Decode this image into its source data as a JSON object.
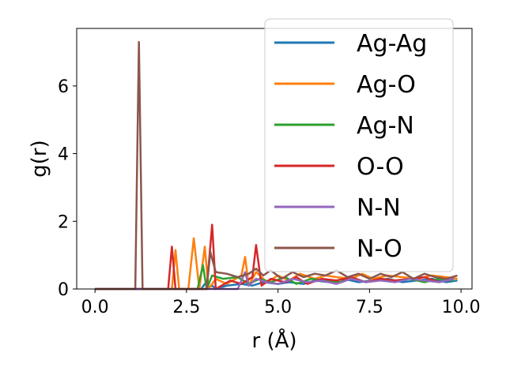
{
  "chart_data": {
    "type": "line",
    "title": "",
    "xlabel": "r (Å)",
    "ylabel": "g(r)",
    "xlim": [
      -0.5,
      10.3
    ],
    "ylim": [
      0,
      7.7
    ],
    "xticks": [
      0.0,
      2.5,
      5.0,
      7.5,
      10.0
    ],
    "xtick_labels": [
      "0.0",
      "2.5",
      "5.0",
      "7.5",
      "10.0"
    ],
    "yticks": [
      0,
      2,
      4,
      6
    ],
    "ytick_labels": [
      "0",
      "2",
      "4",
      "6"
    ],
    "grid": false,
    "legend_position": "top-right",
    "series": [
      {
        "name": "Ag-Ag",
        "color": "#1f77b4",
        "x": [
          0.0,
          2.9,
          3.0,
          3.1,
          3.2,
          3.3,
          3.6,
          4.0,
          4.3,
          4.6,
          5.0,
          5.3,
          5.7,
          6.0,
          6.4,
          6.8,
          7.2,
          7.6,
          8.0,
          8.4,
          8.8,
          9.2,
          9.6,
          9.9
        ],
        "y": [
          0.0,
          0.0,
          0.15,
          0.05,
          0.1,
          0.0,
          0.1,
          0.15,
          0.1,
          0.2,
          0.15,
          0.2,
          0.15,
          0.25,
          0.2,
          0.3,
          0.2,
          0.25,
          0.3,
          0.2,
          0.25,
          0.3,
          0.2,
          0.25
        ]
      },
      {
        "name": "Ag-O",
        "color": "#ff7f0e",
        "x": [
          0.0,
          2.1,
          2.2,
          2.3,
          2.55,
          2.7,
          2.85,
          3.0,
          3.1,
          3.3,
          3.6,
          4.0,
          4.1,
          4.2,
          4.4,
          4.7,
          5.0,
          5.3,
          5.6,
          6.0,
          6.3,
          6.6,
          7.0,
          7.3,
          7.6,
          8.0,
          8.4,
          8.8,
          9.2,
          9.6,
          9.9
        ],
        "y": [
          0.0,
          0.0,
          1.15,
          0.0,
          0.0,
          1.5,
          0.0,
          1.25,
          0.0,
          0.3,
          0.15,
          0.4,
          0.95,
          0.1,
          0.5,
          0.2,
          0.4,
          0.25,
          0.45,
          0.3,
          0.4,
          0.35,
          0.3,
          0.45,
          0.3,
          0.4,
          0.35,
          0.3,
          0.4,
          0.35,
          0.3
        ]
      },
      {
        "name": "Ag-N",
        "color": "#2ca02c",
        "x": [
          0.0,
          2.8,
          2.95,
          3.05,
          3.2,
          3.5,
          3.9,
          4.2,
          4.5,
          4.8,
          5.2,
          5.5,
          5.9,
          6.3,
          6.7,
          7.0,
          7.4,
          7.8,
          8.2,
          8.6,
          9.0,
          9.4,
          9.8
        ],
        "y": [
          0.0,
          0.0,
          0.7,
          0.0,
          0.4,
          0.3,
          0.35,
          0.15,
          0.3,
          0.2,
          0.35,
          0.15,
          0.3,
          0.25,
          0.2,
          0.35,
          0.2,
          0.3,
          0.25,
          0.3,
          0.2,
          0.3,
          0.25
        ]
      },
      {
        "name": "O-O",
        "color": "#d62728",
        "x": [
          0.0,
          2.0,
          2.1,
          2.2,
          3.05,
          3.2,
          3.3,
          3.7,
          4.0,
          4.3,
          4.4,
          4.55,
          4.8,
          5.2,
          5.5,
          5.8,
          6.2,
          6.6,
          7.0,
          7.4,
          7.8,
          8.2,
          8.6,
          9.0,
          9.4,
          9.8
        ],
        "y": [
          0.0,
          0.0,
          1.25,
          0.0,
          0.0,
          1.9,
          0.0,
          0.25,
          0.15,
          0.35,
          1.3,
          0.1,
          0.3,
          0.2,
          0.35,
          0.15,
          0.3,
          0.25,
          0.35,
          0.2,
          0.3,
          0.25,
          0.3,
          0.35,
          0.2,
          0.3
        ]
      },
      {
        "name": "N-N",
        "color": "#9467bd",
        "x": [
          0.0,
          3.9,
          4.1,
          4.2,
          4.4,
          4.7,
          5.0,
          5.4,
          5.8,
          6.2,
          6.6,
          7.0,
          7.4,
          7.8,
          8.2,
          8.6,
          9.0,
          9.4,
          9.8
        ],
        "y": [
          0.0,
          0.0,
          0.5,
          0.1,
          0.3,
          0.2,
          0.15,
          0.3,
          0.2,
          0.25,
          0.15,
          0.3,
          0.2,
          0.25,
          0.2,
          0.3,
          0.25,
          0.2,
          0.3
        ]
      },
      {
        "name": "N-O",
        "color": "#8c564b",
        "x": [
          0.0,
          1.1,
          1.2,
          1.3,
          3.05,
          3.15,
          3.3,
          3.6,
          3.9,
          4.2,
          4.4,
          4.6,
          4.8,
          5.1,
          5.4,
          5.7,
          6.0,
          6.3,
          6.6,
          6.9,
          7.2,
          7.5,
          7.8,
          8.1,
          8.4,
          8.7,
          9.0,
          9.3,
          9.6,
          9.9
        ],
        "y": [
          0.0,
          0.0,
          7.3,
          0.0,
          0.0,
          1.1,
          0.5,
          0.45,
          0.35,
          0.45,
          0.6,
          0.4,
          0.55,
          0.3,
          0.5,
          0.35,
          0.45,
          0.4,
          0.55,
          0.35,
          0.45,
          0.3,
          0.45,
          0.35,
          0.5,
          0.3,
          0.45,
          0.35,
          0.3,
          0.4
        ]
      }
    ]
  }
}
